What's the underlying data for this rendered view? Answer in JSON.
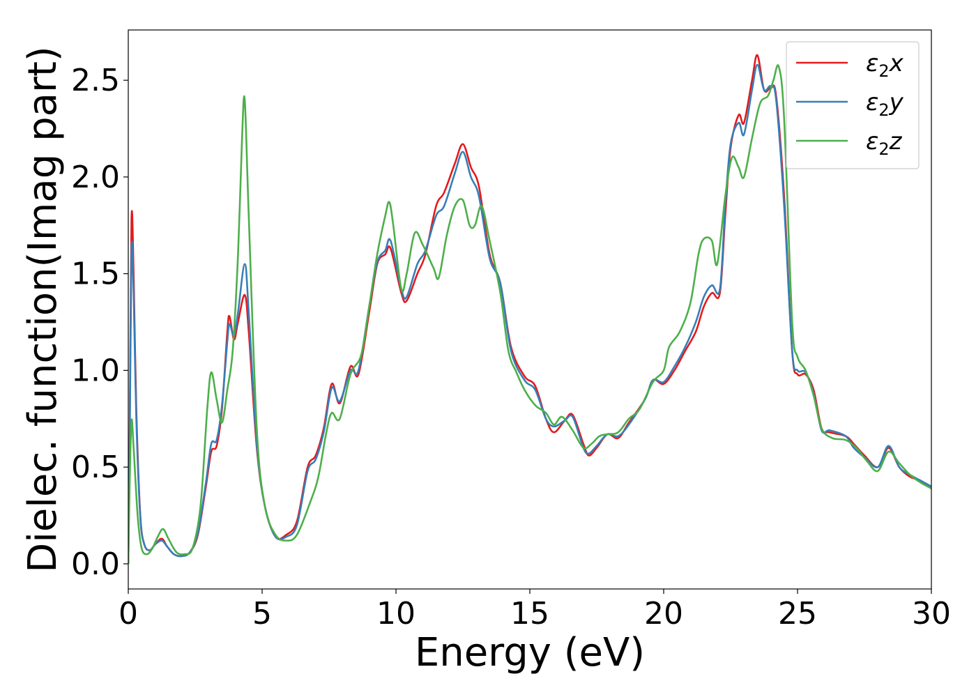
{
  "chart_data": {
    "type": "line",
    "title": "",
    "xlabel": "Energy (eV)",
    "ylabel": "Dielec. function(Imag part)",
    "xlim": [
      0,
      30
    ],
    "ylim": [
      -0.13,
      2.76
    ],
    "xticks": [
      0,
      5,
      10,
      15,
      20,
      25,
      30
    ],
    "yticks": [
      0.0,
      0.5,
      1.0,
      1.5,
      2.0,
      2.5
    ],
    "xtick_labels": [
      "0",
      "5",
      "10",
      "15",
      "20",
      "25",
      "30"
    ],
    "ytick_labels": [
      "0.0",
      "0.5",
      "1.0",
      "1.5",
      "2.0",
      "2.5"
    ],
    "grid": false,
    "legend_position": "top-right",
    "series": [
      {
        "name": "ε₂x",
        "legend_label": {
          "main": "ε",
          "sub": "2",
          "suffix": "x"
        },
        "color": "#e41a1c",
        "points": [
          [
            0,
            0
          ],
          [
            0.05,
            0.6
          ],
          [
            0.12,
            1.78
          ],
          [
            0.2,
            1.5
          ],
          [
            0.3,
            0.8
          ],
          [
            0.45,
            0.25
          ],
          [
            0.6,
            0.1
          ],
          [
            0.8,
            0.07
          ],
          [
            1.0,
            0.1
          ],
          [
            1.25,
            0.13
          ],
          [
            1.45,
            0.09
          ],
          [
            1.7,
            0.05
          ],
          [
            2.0,
            0.04
          ],
          [
            2.3,
            0.06
          ],
          [
            2.6,
            0.15
          ],
          [
            2.9,
            0.4
          ],
          [
            3.1,
            0.58
          ],
          [
            3.3,
            0.61
          ],
          [
            3.5,
            0.8
          ],
          [
            3.7,
            1.2
          ],
          [
            3.78,
            1.28
          ],
          [
            3.95,
            1.16
          ],
          [
            4.1,
            1.25
          ],
          [
            4.35,
            1.39
          ],
          [
            4.5,
            1.2
          ],
          [
            4.8,
            0.6
          ],
          [
            5.1,
            0.3
          ],
          [
            5.5,
            0.14
          ],
          [
            5.9,
            0.15
          ],
          [
            6.3,
            0.22
          ],
          [
            6.7,
            0.5
          ],
          [
            7.0,
            0.56
          ],
          [
            7.3,
            0.7
          ],
          [
            7.6,
            0.93
          ],
          [
            7.9,
            0.83
          ],
          [
            8.3,
            1.02
          ],
          [
            8.6,
            0.98
          ],
          [
            9.0,
            1.3
          ],
          [
            9.3,
            1.55
          ],
          [
            9.6,
            1.6
          ],
          [
            9.8,
            1.63
          ],
          [
            10.2,
            1.4
          ],
          [
            10.4,
            1.36
          ],
          [
            10.8,
            1.5
          ],
          [
            11.1,
            1.6
          ],
          [
            11.5,
            1.85
          ],
          [
            11.8,
            1.92
          ],
          [
            12.2,
            2.07
          ],
          [
            12.5,
            2.17
          ],
          [
            12.8,
            2.05
          ],
          [
            13.1,
            1.95
          ],
          [
            13.5,
            1.6
          ],
          [
            13.9,
            1.45
          ],
          [
            14.3,
            1.12
          ],
          [
            14.8,
            0.97
          ],
          [
            15.2,
            0.92
          ],
          [
            15.6,
            0.75
          ],
          [
            15.9,
            0.68
          ],
          [
            16.3,
            0.74
          ],
          [
            16.6,
            0.77
          ],
          [
            17.0,
            0.62
          ],
          [
            17.2,
            0.56
          ],
          [
            17.5,
            0.6
          ],
          [
            17.9,
            0.67
          ],
          [
            18.3,
            0.65
          ],
          [
            18.7,
            0.73
          ],
          [
            19.3,
            0.85
          ],
          [
            19.6,
            0.95
          ],
          [
            20.0,
            0.93
          ],
          [
            20.4,
            1.0
          ],
          [
            20.8,
            1.1
          ],
          [
            21.2,
            1.2
          ],
          [
            21.5,
            1.33
          ],
          [
            21.8,
            1.4
          ],
          [
            22.1,
            1.4
          ],
          [
            22.3,
            1.8
          ],
          [
            22.5,
            2.15
          ],
          [
            22.8,
            2.32
          ],
          [
            23.0,
            2.28
          ],
          [
            23.3,
            2.5
          ],
          [
            23.5,
            2.63
          ],
          [
            23.75,
            2.45
          ],
          [
            24.0,
            2.46
          ],
          [
            24.2,
            2.42
          ],
          [
            24.5,
            1.9
          ],
          [
            24.8,
            1.1
          ],
          [
            25.0,
            0.98
          ],
          [
            25.3,
            0.98
          ],
          [
            25.6,
            0.9
          ],
          [
            25.9,
            0.7
          ],
          [
            26.2,
            0.68
          ],
          [
            26.8,
            0.66
          ],
          [
            27.1,
            0.62
          ],
          [
            27.5,
            0.56
          ],
          [
            28.0,
            0.5
          ],
          [
            28.4,
            0.6
          ],
          [
            28.8,
            0.5
          ],
          [
            29.2,
            0.45
          ],
          [
            29.6,
            0.43
          ],
          [
            30.0,
            0.39
          ]
        ]
      },
      {
        "name": "ε₂y",
        "legend_label": {
          "main": "ε",
          "sub": "2",
          "suffix": "y"
        },
        "color": "#377eb8",
        "points": [
          [
            0,
            0
          ],
          [
            0.05,
            0.55
          ],
          [
            0.12,
            1.62
          ],
          [
            0.2,
            1.4
          ],
          [
            0.3,
            0.75
          ],
          [
            0.45,
            0.24
          ],
          [
            0.6,
            0.1
          ],
          [
            0.8,
            0.07
          ],
          [
            1.0,
            0.1
          ],
          [
            1.25,
            0.12
          ],
          [
            1.45,
            0.09
          ],
          [
            1.7,
            0.05
          ],
          [
            2.0,
            0.04
          ],
          [
            2.3,
            0.06
          ],
          [
            2.6,
            0.16
          ],
          [
            2.9,
            0.42
          ],
          [
            3.1,
            0.62
          ],
          [
            3.3,
            0.64
          ],
          [
            3.5,
            0.82
          ],
          [
            3.7,
            1.15
          ],
          [
            3.78,
            1.24
          ],
          [
            3.95,
            1.18
          ],
          [
            4.1,
            1.3
          ],
          [
            4.35,
            1.55
          ],
          [
            4.5,
            1.3
          ],
          [
            4.8,
            0.62
          ],
          [
            5.1,
            0.3
          ],
          [
            5.5,
            0.14
          ],
          [
            5.9,
            0.14
          ],
          [
            6.3,
            0.2
          ],
          [
            6.7,
            0.48
          ],
          [
            7.0,
            0.54
          ],
          [
            7.3,
            0.68
          ],
          [
            7.6,
            0.91
          ],
          [
            7.9,
            0.84
          ],
          [
            8.3,
            1.0
          ],
          [
            8.6,
            1.0
          ],
          [
            9.0,
            1.33
          ],
          [
            9.3,
            1.56
          ],
          [
            9.6,
            1.62
          ],
          [
            9.8,
            1.67
          ],
          [
            10.2,
            1.42
          ],
          [
            10.4,
            1.38
          ],
          [
            10.8,
            1.55
          ],
          [
            11.1,
            1.62
          ],
          [
            11.5,
            1.8
          ],
          [
            11.8,
            1.85
          ],
          [
            12.2,
            2.02
          ],
          [
            12.5,
            2.13
          ],
          [
            12.8,
            2.0
          ],
          [
            13.1,
            1.9
          ],
          [
            13.5,
            1.58
          ],
          [
            13.9,
            1.45
          ],
          [
            14.3,
            1.1
          ],
          [
            14.8,
            0.95
          ],
          [
            15.2,
            0.9
          ],
          [
            15.6,
            0.75
          ],
          [
            15.9,
            0.71
          ],
          [
            16.3,
            0.74
          ],
          [
            16.6,
            0.76
          ],
          [
            17.0,
            0.6
          ],
          [
            17.2,
            0.57
          ],
          [
            17.5,
            0.61
          ],
          [
            17.9,
            0.67
          ],
          [
            18.3,
            0.66
          ],
          [
            18.7,
            0.72
          ],
          [
            19.3,
            0.85
          ],
          [
            19.6,
            0.95
          ],
          [
            20.0,
            0.94
          ],
          [
            20.4,
            1.02
          ],
          [
            20.8,
            1.12
          ],
          [
            21.2,
            1.25
          ],
          [
            21.5,
            1.38
          ],
          [
            21.8,
            1.44
          ],
          [
            22.1,
            1.42
          ],
          [
            22.3,
            1.85
          ],
          [
            22.5,
            2.17
          ],
          [
            22.8,
            2.28
          ],
          [
            23.0,
            2.22
          ],
          [
            23.3,
            2.45
          ],
          [
            23.5,
            2.58
          ],
          [
            23.75,
            2.45
          ],
          [
            24.0,
            2.47
          ],
          [
            24.2,
            2.4
          ],
          [
            24.5,
            1.85
          ],
          [
            24.8,
            1.1
          ],
          [
            25.0,
            1.0
          ],
          [
            25.3,
            0.99
          ],
          [
            25.6,
            0.88
          ],
          [
            25.9,
            0.69
          ],
          [
            26.2,
            0.69
          ],
          [
            26.8,
            0.66
          ],
          [
            27.1,
            0.6
          ],
          [
            27.5,
            0.55
          ],
          [
            28.0,
            0.5
          ],
          [
            28.4,
            0.61
          ],
          [
            28.8,
            0.5
          ],
          [
            29.2,
            0.46
          ],
          [
            29.6,
            0.43
          ],
          [
            30.0,
            0.4
          ]
        ]
      },
      {
        "name": "ε₂z",
        "legend_label": {
          "main": "ε",
          "sub": "2",
          "suffix": "z"
        },
        "color": "#4daf4a",
        "points": [
          [
            0,
            0
          ],
          [
            0.05,
            0.4
          ],
          [
            0.12,
            0.74
          ],
          [
            0.2,
            0.6
          ],
          [
            0.35,
            0.25
          ],
          [
            0.5,
            0.08
          ],
          [
            0.7,
            0.05
          ],
          [
            0.9,
            0.08
          ],
          [
            1.1,
            0.14
          ],
          [
            1.3,
            0.18
          ],
          [
            1.5,
            0.13
          ],
          [
            1.8,
            0.06
          ],
          [
            2.1,
            0.05
          ],
          [
            2.4,
            0.08
          ],
          [
            2.7,
            0.3
          ],
          [
            2.95,
            0.8
          ],
          [
            3.1,
            0.99
          ],
          [
            3.3,
            0.85
          ],
          [
            3.5,
            0.73
          ],
          [
            3.7,
            0.9
          ],
          [
            3.9,
            1.1
          ],
          [
            4.1,
            1.6
          ],
          [
            4.25,
            2.2
          ],
          [
            4.35,
            2.4
          ],
          [
            4.5,
            1.8
          ],
          [
            4.8,
            0.7
          ],
          [
            5.1,
            0.3
          ],
          [
            5.5,
            0.15
          ],
          [
            5.9,
            0.12
          ],
          [
            6.3,
            0.15
          ],
          [
            6.8,
            0.32
          ],
          [
            7.1,
            0.45
          ],
          [
            7.4,
            0.68
          ],
          [
            7.6,
            0.78
          ],
          [
            7.9,
            0.75
          ],
          [
            8.3,
            0.98
          ],
          [
            8.7,
            1.08
          ],
          [
            9.0,
            1.33
          ],
          [
            9.3,
            1.6
          ],
          [
            9.6,
            1.8
          ],
          [
            9.75,
            1.87
          ],
          [
            9.9,
            1.75
          ],
          [
            10.2,
            1.42
          ],
          [
            10.4,
            1.5
          ],
          [
            10.7,
            1.71
          ],
          [
            11.0,
            1.65
          ],
          [
            11.4,
            1.53
          ],
          [
            11.6,
            1.48
          ],
          [
            11.9,
            1.7
          ],
          [
            12.2,
            1.85
          ],
          [
            12.5,
            1.88
          ],
          [
            12.75,
            1.75
          ],
          [
            12.95,
            1.75
          ],
          [
            13.2,
            1.85
          ],
          [
            13.5,
            1.67
          ],
          [
            13.9,
            1.4
          ],
          [
            14.2,
            1.1
          ],
          [
            14.5,
            0.99
          ],
          [
            14.8,
            0.9
          ],
          [
            15.2,
            0.82
          ],
          [
            15.6,
            0.78
          ],
          [
            15.9,
            0.72
          ],
          [
            16.2,
            0.76
          ],
          [
            16.6,
            0.69
          ],
          [
            17.0,
            0.6
          ],
          [
            17.3,
            0.62
          ],
          [
            17.6,
            0.66
          ],
          [
            17.9,
            0.67
          ],
          [
            18.3,
            0.68
          ],
          [
            18.7,
            0.75
          ],
          [
            19.1,
            0.8
          ],
          [
            19.6,
            0.94
          ],
          [
            20.0,
            1.0
          ],
          [
            20.2,
            1.12
          ],
          [
            20.6,
            1.2
          ],
          [
            21.0,
            1.35
          ],
          [
            21.3,
            1.6
          ],
          [
            21.5,
            1.68
          ],
          [
            21.8,
            1.67
          ],
          [
            22.0,
            1.55
          ],
          [
            22.3,
            1.9
          ],
          [
            22.55,
            2.1
          ],
          [
            22.8,
            2.05
          ],
          [
            23.0,
            2.0
          ],
          [
            23.3,
            2.2
          ],
          [
            23.6,
            2.38
          ],
          [
            23.9,
            2.42
          ],
          [
            24.1,
            2.5
          ],
          [
            24.3,
            2.57
          ],
          [
            24.5,
            2.3
          ],
          [
            24.8,
            1.25
          ],
          [
            25.0,
            1.07
          ],
          [
            25.3,
            1.0
          ],
          [
            25.6,
            0.87
          ],
          [
            25.9,
            0.7
          ],
          [
            26.3,
            0.65
          ],
          [
            26.8,
            0.64
          ],
          [
            27.2,
            0.6
          ],
          [
            27.6,
            0.53
          ],
          [
            28.0,
            0.48
          ],
          [
            28.4,
            0.58
          ],
          [
            28.8,
            0.52
          ],
          [
            29.2,
            0.46
          ],
          [
            29.6,
            0.42
          ],
          [
            30.0,
            0.39
          ]
        ]
      }
    ]
  }
}
